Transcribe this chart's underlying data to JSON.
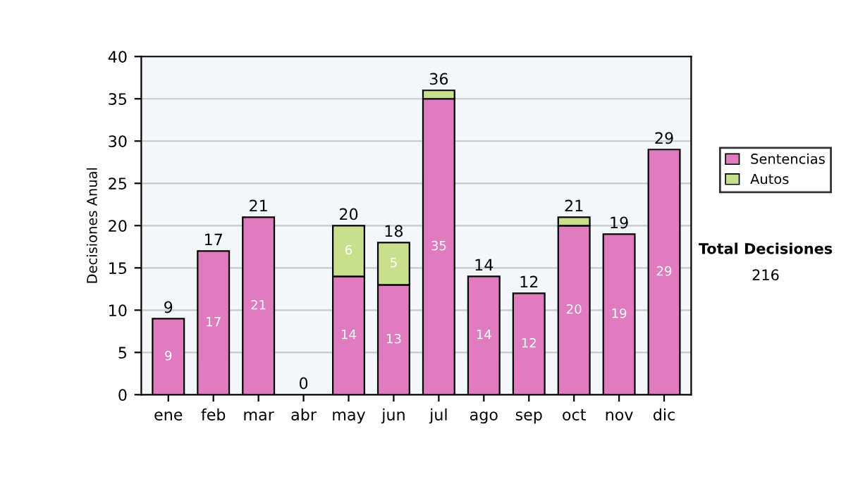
{
  "chart_data": {
    "type": "bar",
    "stacked": true,
    "ylabel": "Decisiones Anual",
    "categories": [
      "ene",
      "feb",
      "mar",
      "abr",
      "may",
      "jun",
      "jul",
      "ago",
      "sep",
      "oct",
      "nov",
      "dic"
    ],
    "series": [
      {
        "name": "Sentencias",
        "color": "#e07bbf",
        "values": [
          9,
          17,
          21,
          0,
          14,
          13,
          35,
          14,
          12,
          20,
          19,
          29
        ],
        "value_labels": [
          "9",
          "17",
          "21",
          null,
          "14",
          "13",
          "35",
          "14",
          "12",
          "20",
          "19",
          "29"
        ]
      },
      {
        "name": "Autos",
        "color": "#c8e08c",
        "values": [
          0,
          0,
          0,
          0,
          6,
          5,
          1,
          0,
          0,
          1,
          0,
          0
        ],
        "value_labels": [
          null,
          null,
          null,
          null,
          "6",
          "5",
          null,
          null,
          null,
          null,
          null,
          null
        ]
      }
    ],
    "totals": [
      "9",
      "17",
      "21",
      "0",
      "20",
      "18",
      "36",
      "14",
      "12",
      "21",
      "19",
      "29"
    ],
    "ylim": [
      0,
      40
    ],
    "yticks": [
      0,
      5,
      10,
      15,
      20,
      25,
      30,
      35,
      40
    ],
    "grid": "y",
    "legend": "right",
    "annotations": [
      "Total Decisiones",
      "216"
    ]
  }
}
